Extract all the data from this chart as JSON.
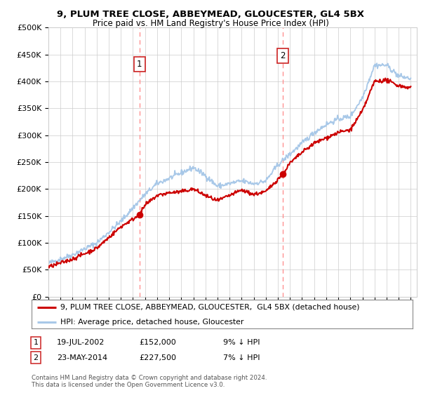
{
  "title": "9, PLUM TREE CLOSE, ABBEYMEAD, GLOUCESTER, GL4 5BX",
  "subtitle": "Price paid vs. HM Land Registry's House Price Index (HPI)",
  "ylabel_ticks": [
    "£0",
    "£50K",
    "£100K",
    "£150K",
    "£200K",
    "£250K",
    "£300K",
    "£350K",
    "£400K",
    "£450K",
    "£500K"
  ],
  "ytick_values": [
    0,
    50000,
    100000,
    150000,
    200000,
    250000,
    300000,
    350000,
    400000,
    450000,
    500000
  ],
  "ylim": [
    0,
    500000
  ],
  "xlim_start": 1995.0,
  "xlim_end": 2025.5,
  "xtick_years": [
    1995,
    1996,
    1997,
    1998,
    1999,
    2000,
    2001,
    2002,
    2003,
    2004,
    2005,
    2006,
    2007,
    2008,
    2009,
    2010,
    2011,
    2012,
    2013,
    2014,
    2015,
    2016,
    2017,
    2018,
    2019,
    2020,
    2021,
    2022,
    2023,
    2024,
    2025
  ],
  "hpi_color": "#a8c8e8",
  "price_paid_color": "#cc0000",
  "vline_color": "#ff8888",
  "grid_color": "#cccccc",
  "bg_color": "#ffffff",
  "purchase1_x": 2002.54,
  "purchase1_y": 152000,
  "purchase1_label": "1",
  "purchase2_x": 2014.39,
  "purchase2_y": 227500,
  "purchase2_label": "2",
  "legend_line1": "9, PLUM TREE CLOSE, ABBEYMEAD, GLOUCESTER,  GL4 5BX (detached house)",
  "legend_line2": "HPI: Average price, detached house, Gloucester",
  "footnote": "Contains HM Land Registry data © Crown copyright and database right 2024.\nThis data is licensed under the Open Government Licence v3.0.",
  "table_rows": [
    {
      "label": "1",
      "date": "19-JUL-2002",
      "price": "£152,000",
      "pct": "9% ↓ HPI"
    },
    {
      "label": "2",
      "date": "23-MAY-2014",
      "price": "£227,500",
      "pct": "7% ↓ HPI"
    }
  ],
  "hpi_keypoints_x": [
    1995,
    1997,
    1999,
    2001,
    2002,
    2003,
    2004,
    2005,
    2006,
    2007,
    2008,
    2009,
    2010,
    2011,
    2012,
    2013,
    2014,
    2015,
    2016,
    2017,
    2018,
    2019,
    2020,
    2021,
    2022,
    2023,
    2024,
    2025
  ],
  "hpi_keypoints_y": [
    62000,
    78000,
    100000,
    140000,
    165000,
    190000,
    210000,
    220000,
    230000,
    240000,
    225000,
    205000,
    210000,
    215000,
    210000,
    215000,
    245000,
    265000,
    285000,
    305000,
    320000,
    330000,
    335000,
    370000,
    430000,
    430000,
    410000,
    405000
  ],
  "price_keypoints_x": [
    1995,
    1997,
    1999,
    2001,
    2002.54,
    2003,
    2004,
    2005,
    2006,
    2007,
    2008,
    2009,
    2010,
    2011,
    2012,
    2013,
    2014.39,
    2015,
    2016,
    2017,
    2018,
    2019,
    2020,
    2021,
    2022,
    2023,
    2024,
    2025
  ],
  "price_keypoints_y": [
    55000,
    70000,
    90000,
    130000,
    152000,
    170000,
    188000,
    193000,
    195000,
    200000,
    188000,
    178000,
    188000,
    198000,
    190000,
    195000,
    227500,
    248000,
    268000,
    285000,
    295000,
    305000,
    310000,
    345000,
    400000,
    402000,
    392000,
    388000
  ]
}
